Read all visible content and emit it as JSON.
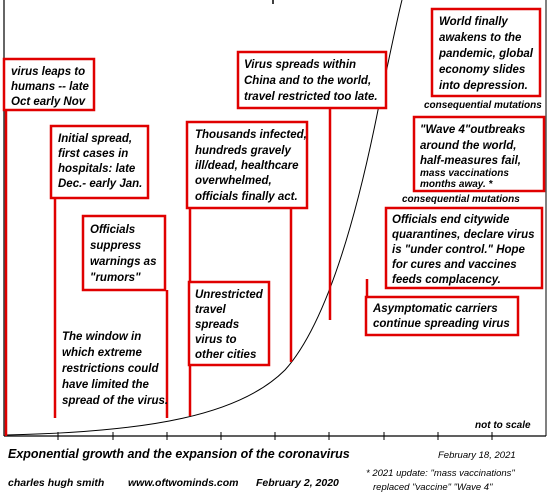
{
  "colors": {
    "accent": "#e00000",
    "curve": "#000000",
    "grid": "#b0b0b0"
  },
  "labels": [
    {
      "id": "virus-leaps",
      "lines": [
        "virus leaps to",
        "humans -- late",
        "Oct early Nov"
      ]
    },
    {
      "id": "initial-spread",
      "lines": [
        "Initial spread,",
        "first cases in",
        "hospitals: late",
        "Dec.- early Jan."
      ]
    },
    {
      "id": "officials-suppress",
      "lines": [
        "Officials",
        "suppress",
        "warnings as",
        "\"rumors\""
      ]
    },
    {
      "id": "window",
      "lines": [
        "The window in",
        "which extreme",
        "restrictions could",
        "have limited the",
        "spread of the virus."
      ]
    },
    {
      "id": "thousands-infected",
      "lines": [
        "Thousands infected,",
        "hundreds gravely",
        "ill/dead, healthcare",
        "overwhelmed,",
        "officials finally act."
      ]
    },
    {
      "id": "unrestricted-travel",
      "lines": [
        "Unrestricted",
        "travel",
        "spreads",
        "virus to",
        "other cities"
      ]
    },
    {
      "id": "virus-spreads-china",
      "lines": [
        "Virus spreads within",
        "China and to the world,",
        "travel restricted too late."
      ]
    },
    {
      "id": "world-awakens",
      "lines": [
        "World finally",
        "awakens to the",
        "pandemic, global",
        "economy slides",
        "into depression."
      ]
    },
    {
      "id": "wave-4",
      "lines": [
        "\"Wave 4\"outbreaks",
        "around the world,",
        "half-measures fail,",
        "mass vaccinations",
        "months away. *"
      ]
    },
    {
      "id": "officials-end",
      "lines": [
        "Officials end citywide",
        "quarantines, declare virus",
        "is \"under control.\" Hope",
        "for cures and vaccines",
        "feeds complacency."
      ]
    },
    {
      "id": "asymptomatic",
      "lines": [
        "Asymptomatic carriers",
        "continue spreading virus"
      ]
    }
  ],
  "notes": {
    "consequential_mutations_1": "consequential mutations",
    "consequential_mutations_2": "consequential mutations",
    "not_to_scale": "not to scale",
    "date_update": "February 18, 2021",
    "footnote_line1": "* 2021 update: \"mass vaccinations\"",
    "footnote_line2": "replaced \"vaccine\"  \"Wave 4\""
  },
  "footer": {
    "title": "Exponential growth and the expansion of the coronavirus",
    "author": "charles hugh smith",
    "site": "www.oftwominds.com",
    "date": "February 2, 2020"
  }
}
